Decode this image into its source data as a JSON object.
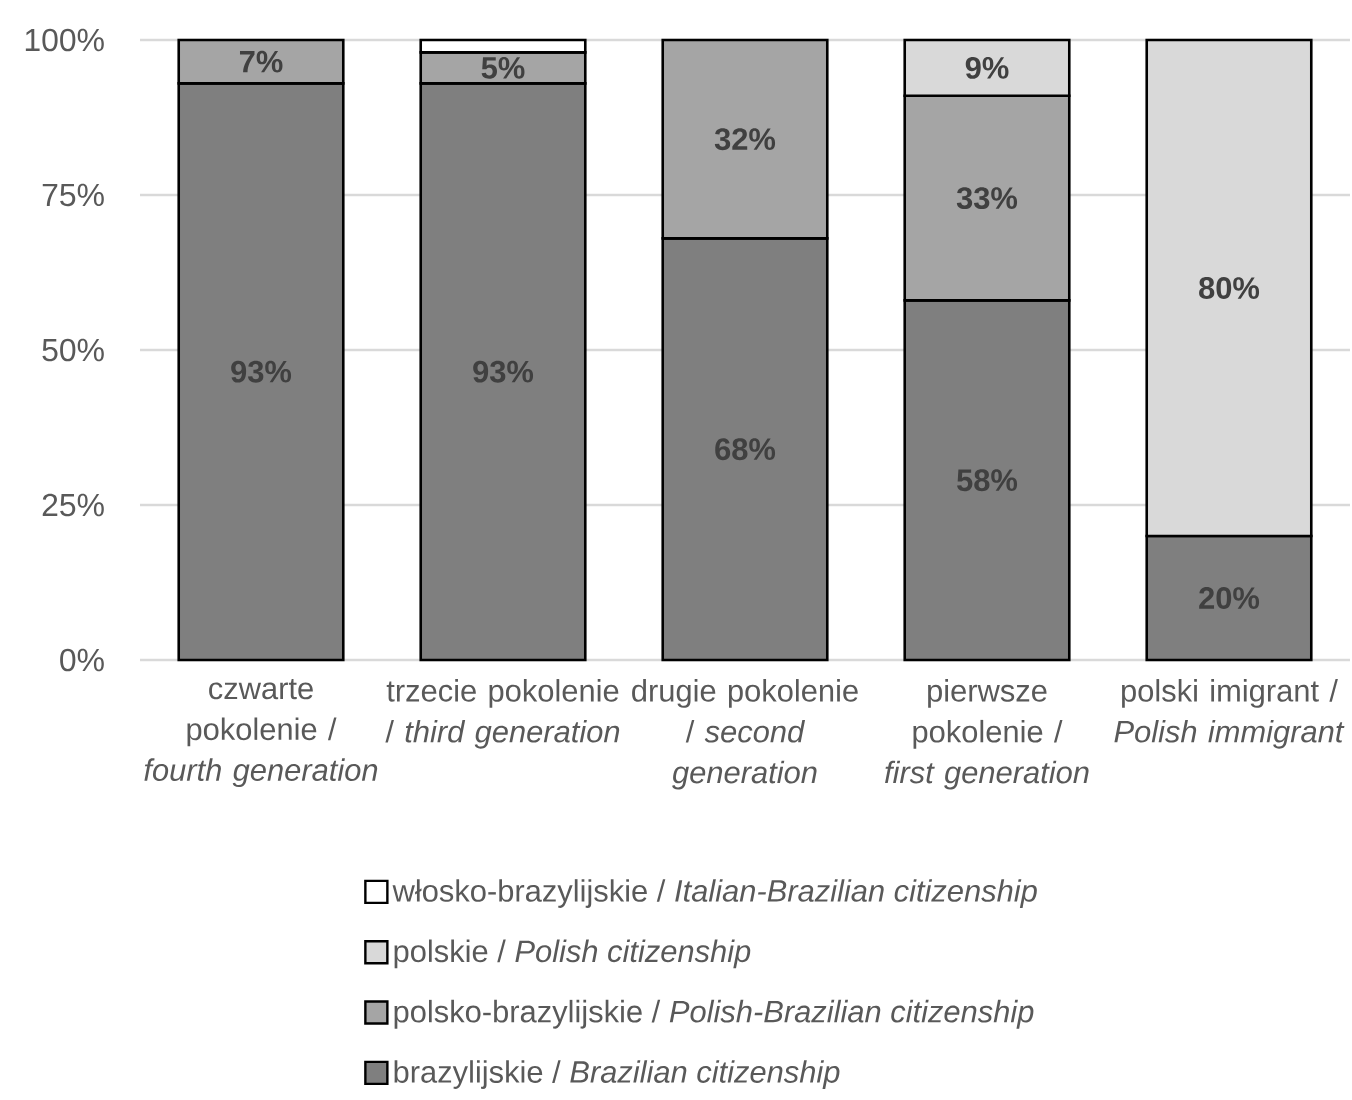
{
  "chart_data": {
    "type": "bar",
    "stacked": true,
    "categories": [
      "czwarte pokolenie / *fourth generation*",
      "trzecie pokolenie / *third generation*",
      "drugie pokolenie / *second generation*",
      "pierwsze pokolenie / *first generation*",
      "polski imigrant / *Polish immigrant*"
    ],
    "series": [
      {
        "name": "brazylijskie / *Brazilian citizenship*",
        "color": "#7f7f7f",
        "values": [
          93,
          93,
          68,
          58,
          20
        ],
        "value_labels": [
          "93%",
          "93%",
          "68%",
          "58%",
          "20%"
        ]
      },
      {
        "name": "polsko-brazylijskie / *Polish-Brazilian citizenship*",
        "color": "#a5a5a5",
        "values": [
          7,
          5,
          32,
          33,
          0
        ],
        "value_labels": [
          "7%",
          "5%",
          "32%",
          "33%",
          null
        ]
      },
      {
        "name": "polskie / *Polish citizenship*",
        "color": "#d9d9d9",
        "values": [
          0,
          0,
          0,
          9,
          80
        ],
        "value_labels": [
          null,
          null,
          null,
          "9%",
          "80%"
        ]
      },
      {
        "name": "włosko-brazylijskie / *Italian-Brazilian citizenship*",
        "color": "#ffffff",
        "values": [
          0,
          2,
          0,
          0,
          0
        ],
        "value_labels": [
          null,
          null,
          null,
          null,
          null
        ]
      }
    ],
    "ylim": [
      0,
      100
    ],
    "yticks": [
      {
        "value": 0,
        "label": "0%"
      },
      {
        "value": 25,
        "label": "25%"
      },
      {
        "value": 50,
        "label": "50%"
      },
      {
        "value": 75,
        "label": "75%"
      },
      {
        "value": 100,
        "label": "100%"
      }
    ],
    "grid": "y",
    "legend": "bottom"
  }
}
